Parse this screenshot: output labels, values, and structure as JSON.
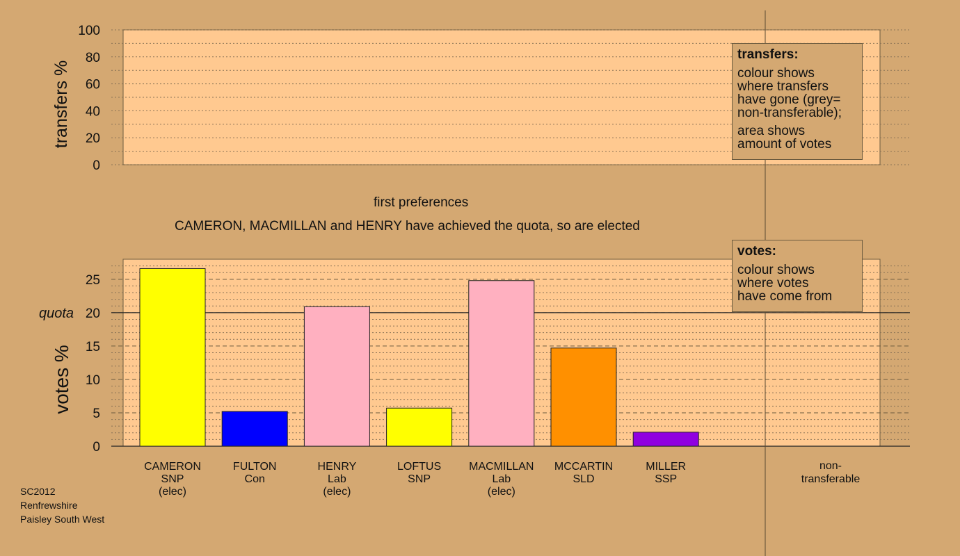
{
  "chart_data": [
    {
      "type": "area",
      "ylabel": "transfers %",
      "ylim": [
        0,
        100
      ],
      "yticks": [
        0,
        20,
        40,
        60,
        80,
        100
      ],
      "series": []
    },
    {
      "type": "bar",
      "ylabel": "votes %",
      "ylim": [
        0,
        28
      ],
      "yticks": [
        0,
        5,
        10,
        15,
        20,
        25
      ],
      "quota": 20,
      "quota_label": "quota",
      "categories": [
        {
          "name": "CAMERON",
          "party": "SNP",
          "status": "(elec)",
          "color": "#FFFF00"
        },
        {
          "name": "FULTON",
          "party": "Con",
          "status": "",
          "color": "#0000FF"
        },
        {
          "name": "HENRY",
          "party": "Lab",
          "status": "(elec)",
          "color": "#FFB0C0"
        },
        {
          "name": "LOFTUS",
          "party": "SNP",
          "status": "",
          "color": "#FFFF00"
        },
        {
          "name": "MACMILLAN",
          "party": "Lab",
          "status": "(elec)",
          "color": "#FFB0C0"
        },
        {
          "name": "MCCARTIN",
          "party": "SLD",
          "status": "",
          "color": "#FF9000"
        },
        {
          "name": "MILLER",
          "party": "SSP",
          "status": "",
          "color": "#9000E0"
        }
      ],
      "values": [
        26.6,
        5.2,
        20.9,
        5.7,
        24.8,
        14.7,
        2.1
      ],
      "non_transferable": {
        "line1": "non-",
        "line2": "transferable",
        "value": 0
      }
    }
  ],
  "headings": {
    "stage": "first preferences",
    "elected_note": "CAMERON, MACMILLAN and HENRY have achieved the quota, so are elected"
  },
  "legend_transfers": {
    "title": "transfers:",
    "line1": "colour shows",
    "line2": "where transfers",
    "line3": "have gone (grey=",
    "line4": "non-transferable);",
    "line5": "area shows",
    "line6": "amount of votes"
  },
  "legend_votes": {
    "title": "votes:",
    "line1": "colour shows",
    "line2": "where votes",
    "line3": "have come from"
  },
  "footer": {
    "election": "SC2012",
    "council": "Renfrewshire",
    "ward": "Paisley South West"
  },
  "colors": {
    "background": "#D4A872",
    "plot_background": "#FFC990",
    "axis": "#000000"
  }
}
